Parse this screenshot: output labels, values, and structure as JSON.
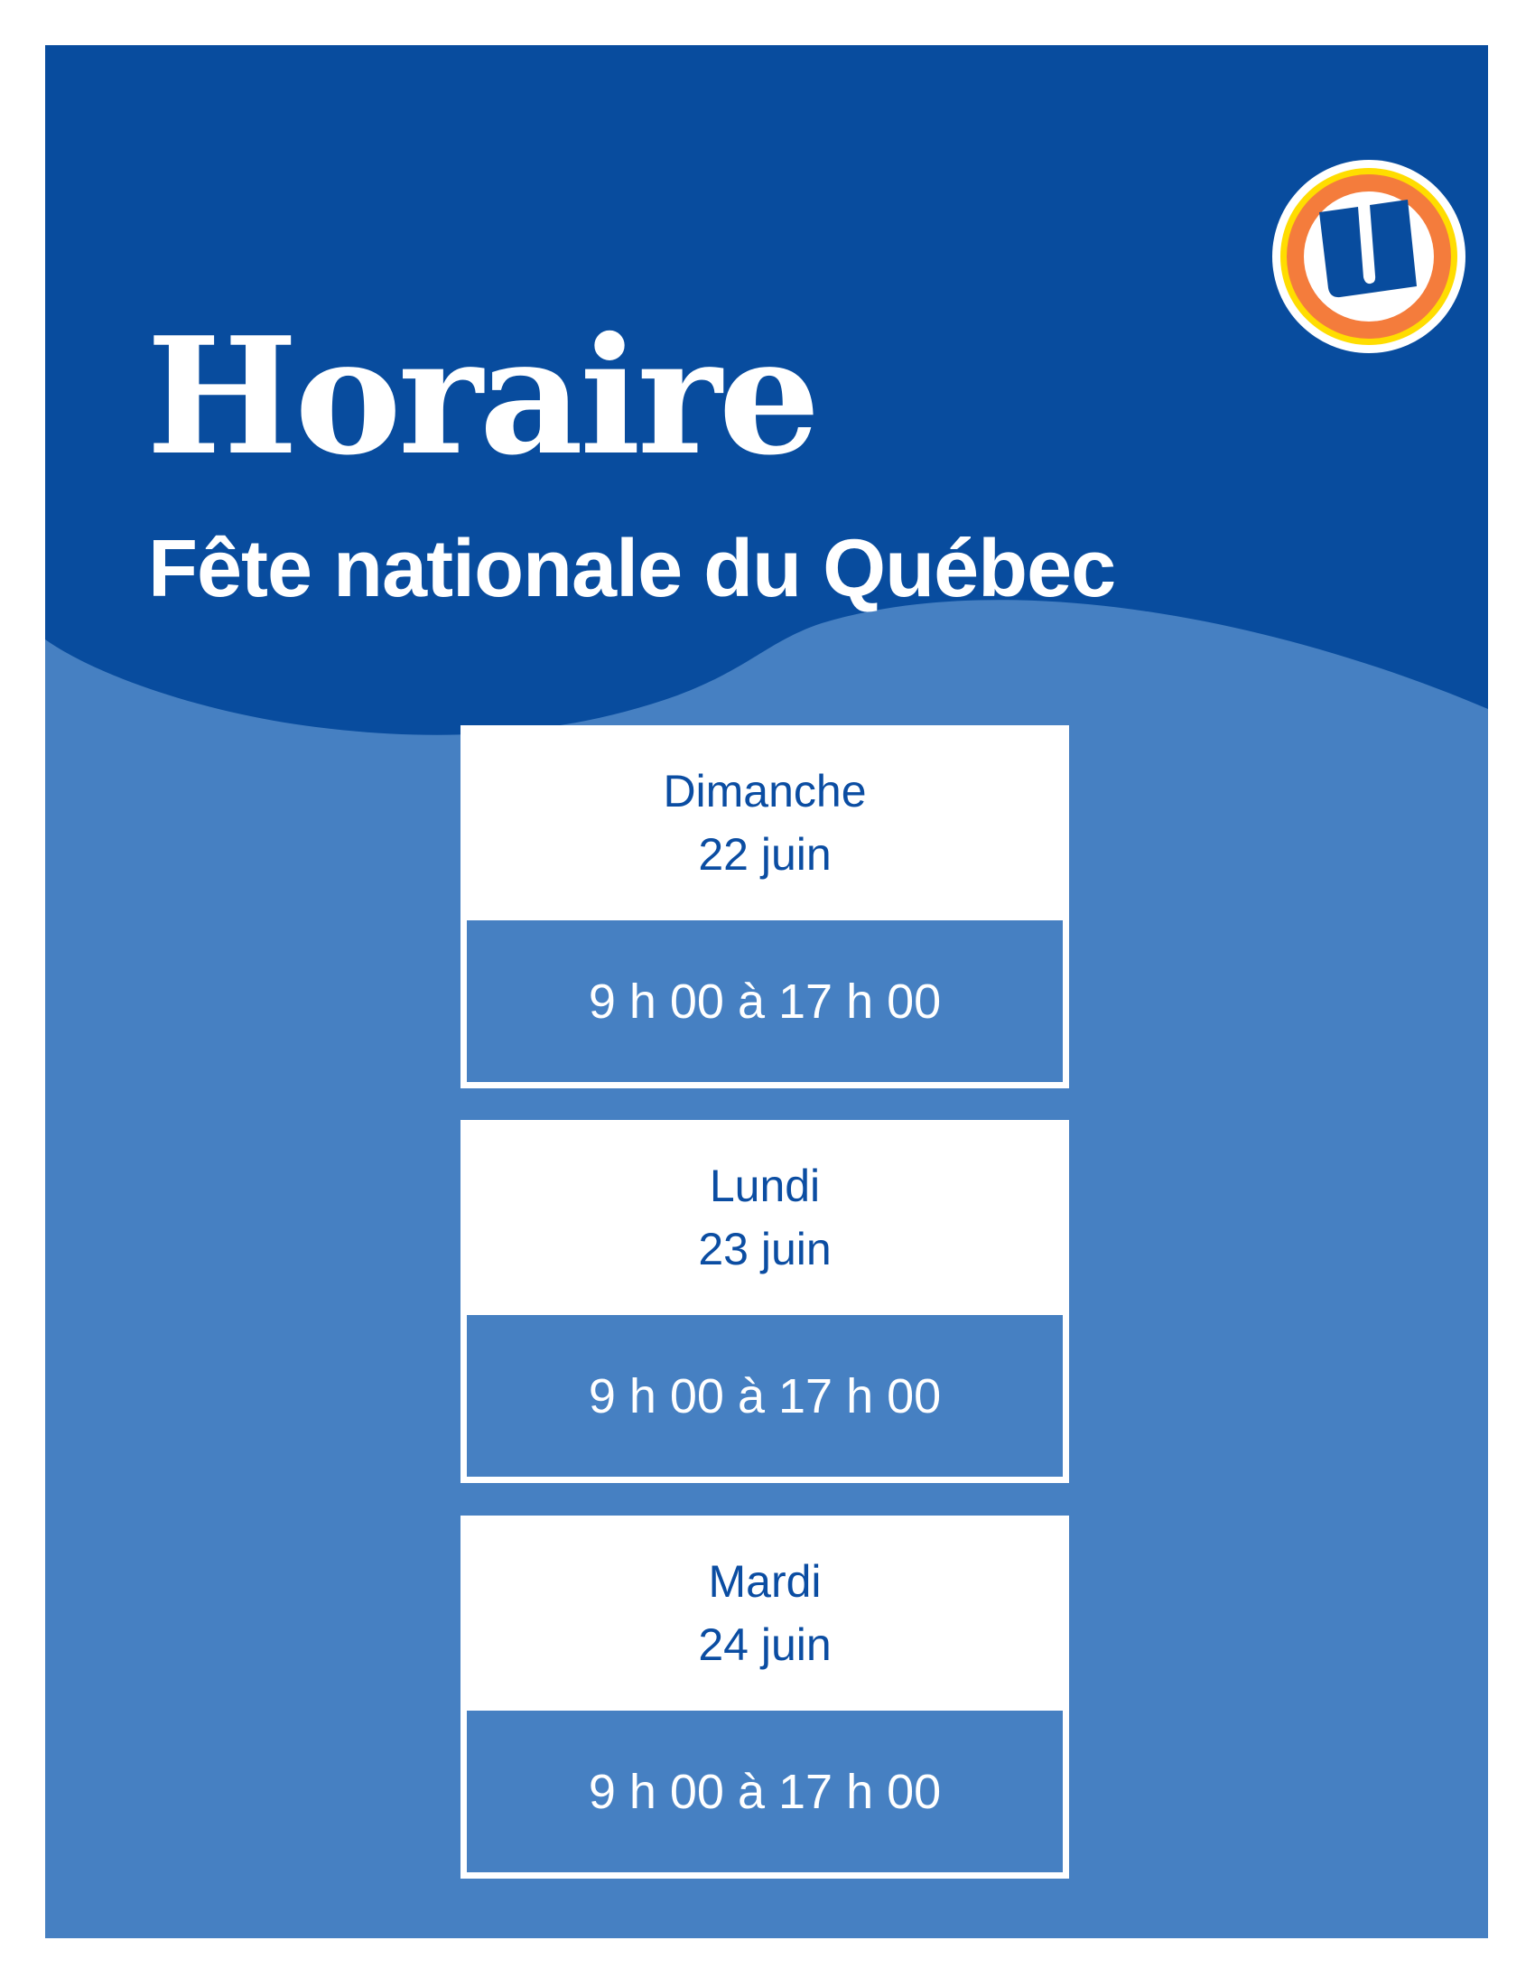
{
  "header": {
    "title": "Horaire",
    "subtitle": "Fête nationale du Québec",
    "logo_icon": "uniprix-u-logo"
  },
  "colors": {
    "dark_blue": "#084C9E",
    "light_blue": "#4680C2",
    "logo_orange": "#F47C3C",
    "logo_yellow": "#FFDD00"
  },
  "schedule": [
    {
      "day": "Dimanche",
      "date": "22 juin",
      "hours": "9 h 00 à 17 h 00"
    },
    {
      "day": "Lundi",
      "date": "23 juin",
      "hours": "9 h 00 à 17 h 00"
    },
    {
      "day": "Mardi",
      "date": "24 juin",
      "hours": "9 h 00 à 17 h 00"
    }
  ]
}
